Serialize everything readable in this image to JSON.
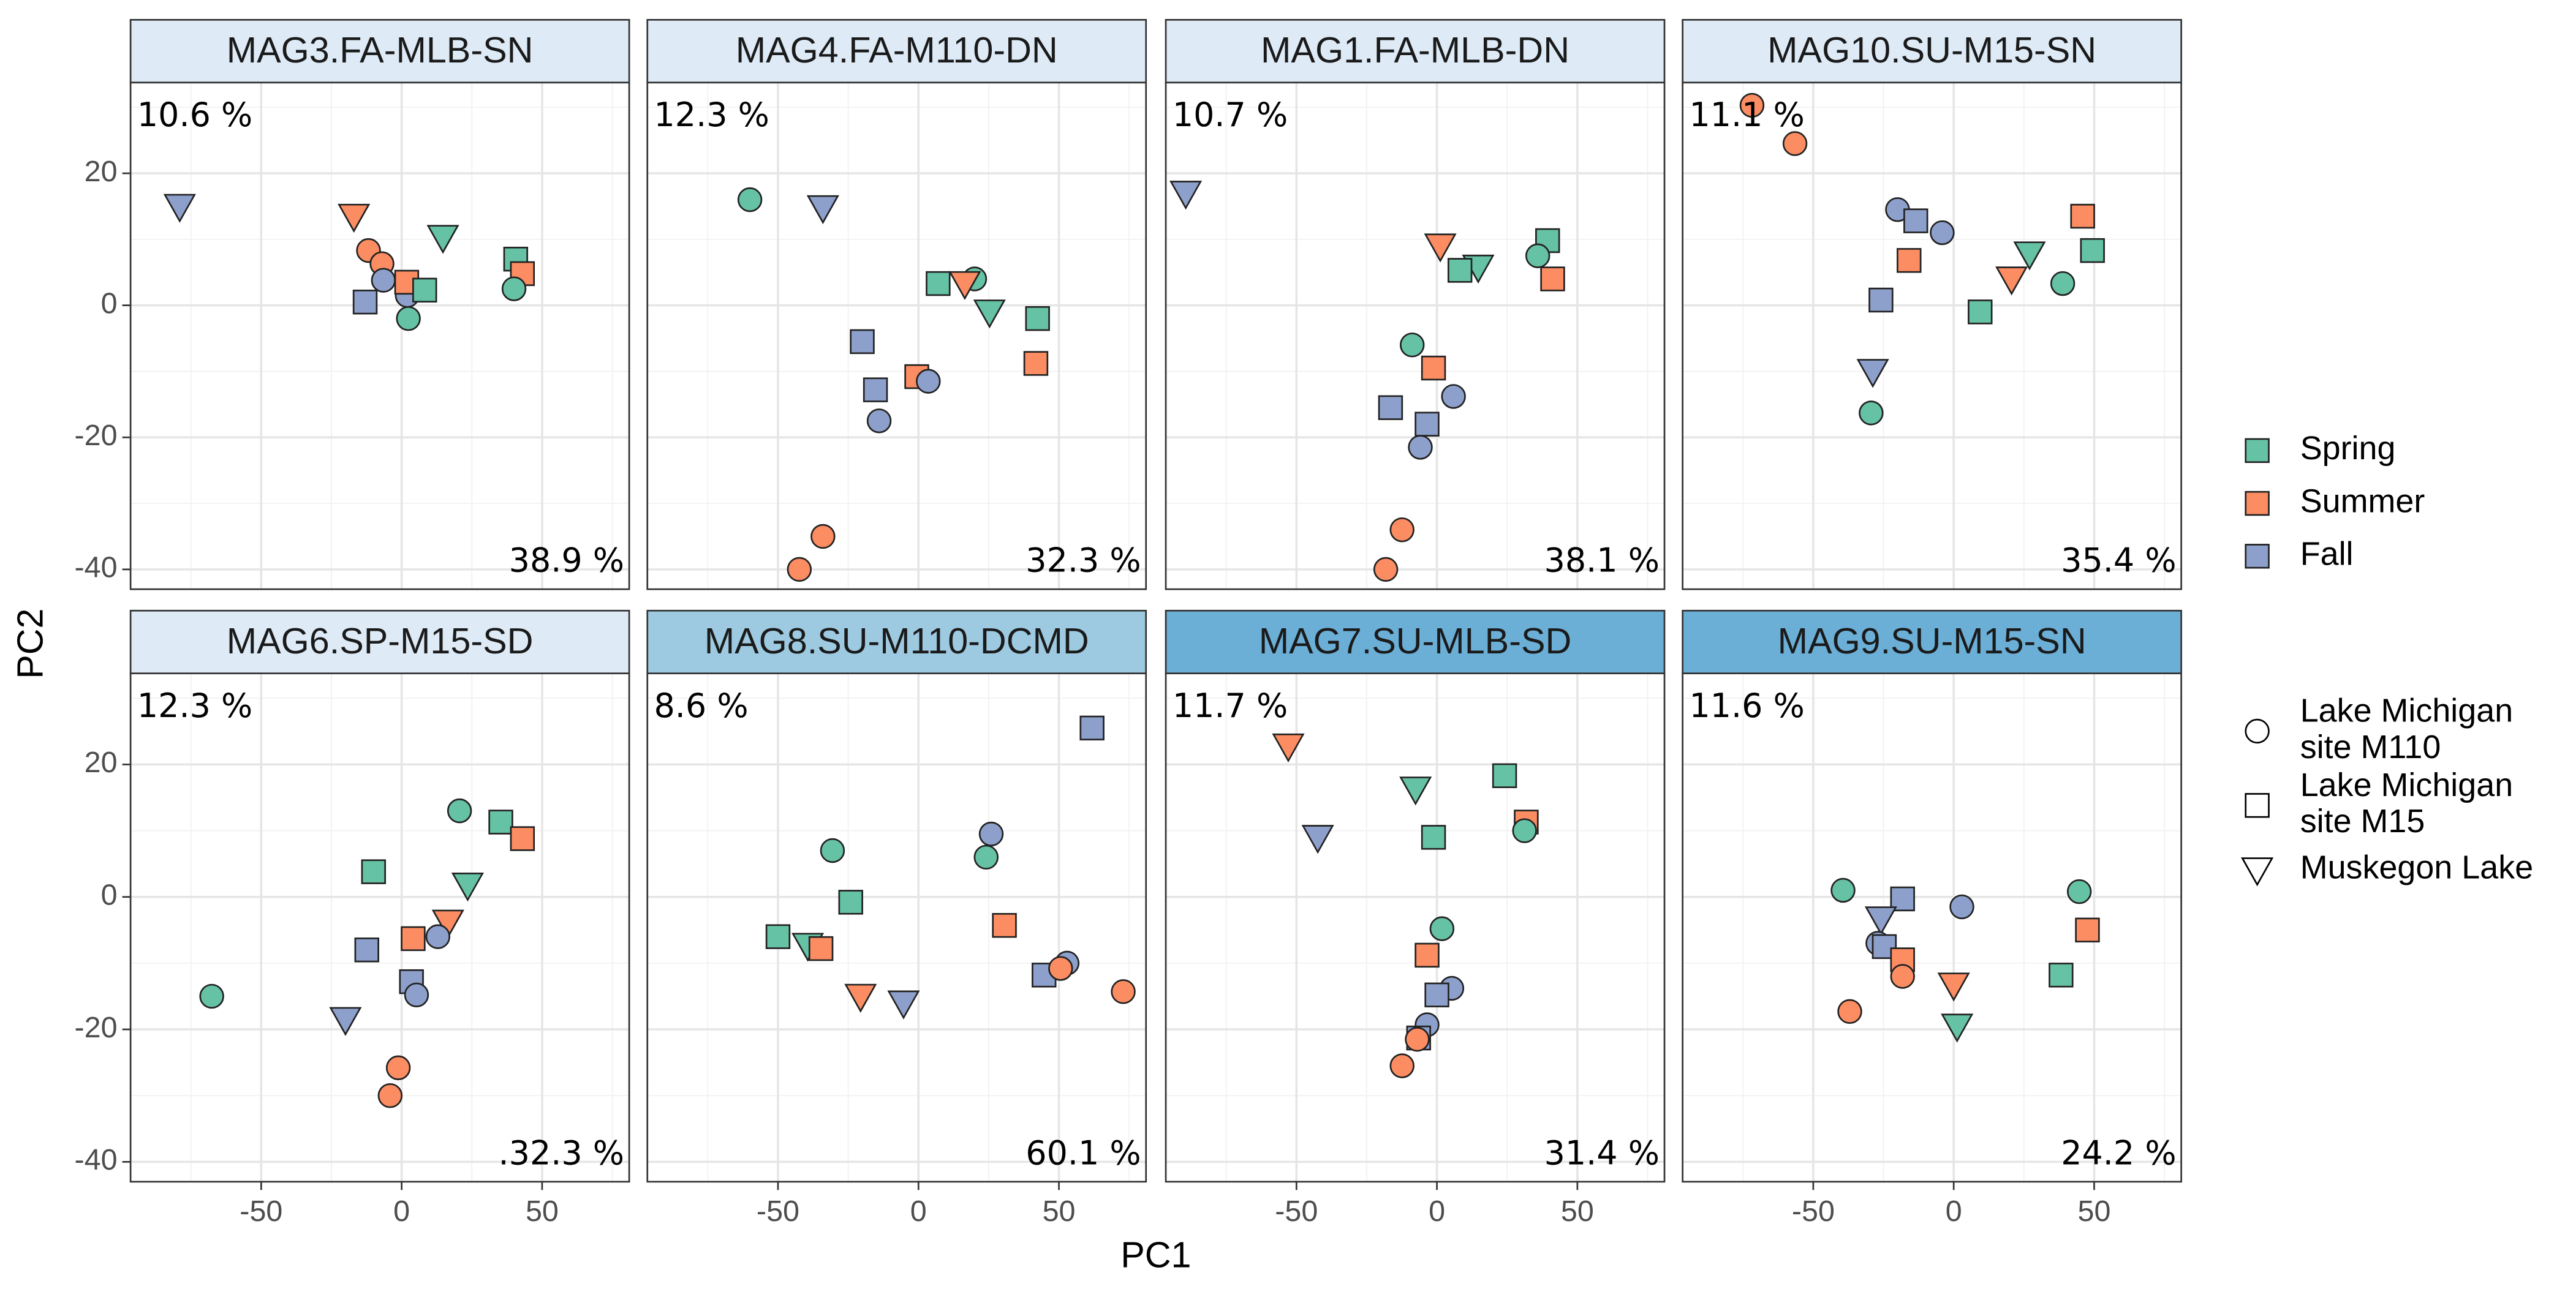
{
  "chart_data": [
    {
      "type": "scatter",
      "title": "MAG3.FA-MLB-SN",
      "strip_color": "#deebf7",
      "annotations": [
        "10.6 %",
        "38.9 %"
      ],
      "points": [
        {
          "x": -79,
          "y": 15,
          "season": "Fall",
          "shape": "triangle"
        },
        {
          "x": -17,
          "y": 13.5,
          "season": "Summer",
          "shape": "triangle"
        },
        {
          "x": 14.7,
          "y": 10.3,
          "season": "Spring",
          "shape": "triangle"
        },
        {
          "x": -11.8,
          "y": 8.3,
          "season": "Summer",
          "shape": "circle"
        },
        {
          "x": -7,
          "y": 6.3,
          "season": "Summer",
          "shape": "circle"
        },
        {
          "x": -6.5,
          "y": 3.8,
          "season": "Fall",
          "shape": "circle"
        },
        {
          "x": 2,
          "y": 1.5,
          "season": "Fall",
          "shape": "circle"
        },
        {
          "x": 1.8,
          "y": 3.5,
          "season": "Summer",
          "shape": "square"
        },
        {
          "x": 8.2,
          "y": 2.3,
          "season": "Spring",
          "shape": "square"
        },
        {
          "x": -13,
          "y": 0.5,
          "season": "Fall",
          "shape": "square"
        },
        {
          "x": 2.4,
          "y": -2,
          "season": "Spring",
          "shape": "circle"
        },
        {
          "x": 40.6,
          "y": 7,
          "season": "Spring",
          "shape": "square"
        },
        {
          "x": 43,
          "y": 4.8,
          "season": "Summer",
          "shape": "square"
        },
        {
          "x": 40,
          "y": 2.5,
          "season": "Spring",
          "shape": "circle"
        }
      ]
    },
    {
      "type": "scatter",
      "title": "MAG4.FA-M110-DN",
      "strip_color": "#deebf7",
      "annotations": [
        "12.3 %",
        "32.3 %"
      ],
      "points": [
        {
          "x": -60,
          "y": 16,
          "season": "Spring",
          "shape": "circle"
        },
        {
          "x": -34,
          "y": 14.8,
          "season": "Fall",
          "shape": "triangle"
        },
        {
          "x": 20,
          "y": 4,
          "season": "Spring",
          "shape": "circle"
        },
        {
          "x": 16.5,
          "y": 3.3,
          "season": "Summer",
          "shape": "triangle"
        },
        {
          "x": 7,
          "y": 3.3,
          "season": "Spring",
          "shape": "square"
        },
        {
          "x": 25.3,
          "y": -1,
          "season": "Spring",
          "shape": "triangle"
        },
        {
          "x": 42.4,
          "y": -2,
          "season": "Spring",
          "shape": "square"
        },
        {
          "x": 41.8,
          "y": -8.8,
          "season": "Summer",
          "shape": "square"
        },
        {
          "x": -0.6,
          "y": -10.8,
          "season": "Summer",
          "shape": "square"
        },
        {
          "x": 3.5,
          "y": -11.5,
          "season": "Fall",
          "shape": "circle"
        },
        {
          "x": -20,
          "y": -5.5,
          "season": "Fall",
          "shape": "square"
        },
        {
          "x": -15.3,
          "y": -12.8,
          "season": "Fall",
          "shape": "square"
        },
        {
          "x": -14,
          "y": -17.5,
          "season": "Fall",
          "shape": "circle"
        },
        {
          "x": -34,
          "y": -35,
          "season": "Summer",
          "shape": "circle"
        },
        {
          "x": -42.4,
          "y": -40,
          "season": "Summer",
          "shape": "circle"
        }
      ]
    },
    {
      "type": "scatter",
      "title": "MAG1.FA-MLB-DN",
      "strip_color": "#deebf7",
      "annotations": [
        "10.7 %",
        "38.1 %"
      ],
      "points": [
        {
          "x": -89.4,
          "y": 17,
          "season": "Fall",
          "shape": "triangle"
        },
        {
          "x": 1.2,
          "y": 9,
          "season": "Summer",
          "shape": "triangle"
        },
        {
          "x": 39.4,
          "y": 9.8,
          "season": "Spring",
          "shape": "square"
        },
        {
          "x": 35.9,
          "y": 7.5,
          "season": "Spring",
          "shape": "circle"
        },
        {
          "x": 14.7,
          "y": 5.8,
          "season": "Spring",
          "shape": "triangle"
        },
        {
          "x": 8.2,
          "y": 5.3,
          "season": "Spring",
          "shape": "square"
        },
        {
          "x": 41.2,
          "y": 4,
          "season": "Summer",
          "shape": "square"
        },
        {
          "x": -8.8,
          "y": -6,
          "season": "Spring",
          "shape": "circle"
        },
        {
          "x": -1.2,
          "y": -9.5,
          "season": "Summer",
          "shape": "square"
        },
        {
          "x": 5.9,
          "y": -13.8,
          "season": "Fall",
          "shape": "circle"
        },
        {
          "x": -16.5,
          "y": -15.5,
          "season": "Fall",
          "shape": "square"
        },
        {
          "x": -3.5,
          "y": -18,
          "season": "Fall",
          "shape": "square"
        },
        {
          "x": -5.9,
          "y": -21.5,
          "season": "Fall",
          "shape": "circle"
        },
        {
          "x": -12.4,
          "y": -34,
          "season": "Summer",
          "shape": "circle"
        },
        {
          "x": -18.2,
          "y": -40,
          "season": "Summer",
          "shape": "circle"
        }
      ]
    },
    {
      "type": "scatter",
      "title": "MAG10.SU-M15-SN",
      "strip_color": "#deebf7",
      "annotations": [
        "11.1 %",
        "35.4 %"
      ],
      "points": [
        {
          "x": -71.8,
          "y": 30.3,
          "season": "Summer",
          "shape": "circle"
        },
        {
          "x": -56.5,
          "y": 24.5,
          "season": "Summer",
          "shape": "circle"
        },
        {
          "x": 45.9,
          "y": 13.5,
          "season": "Summer",
          "shape": "square"
        },
        {
          "x": -20,
          "y": 14.5,
          "season": "Fall",
          "shape": "circle"
        },
        {
          "x": -13.5,
          "y": 12.8,
          "season": "Fall",
          "shape": "square"
        },
        {
          "x": -4.1,
          "y": 11,
          "season": "Fall",
          "shape": "circle"
        },
        {
          "x": 49.4,
          "y": 8.3,
          "season": "Spring",
          "shape": "square"
        },
        {
          "x": -15.9,
          "y": 6.8,
          "season": "Summer",
          "shape": "square"
        },
        {
          "x": 27,
          "y": 7.8,
          "season": "Spring",
          "shape": "triangle"
        },
        {
          "x": 20.6,
          "y": 4,
          "season": "Summer",
          "shape": "triangle"
        },
        {
          "x": 38.8,
          "y": 3.3,
          "season": "Spring",
          "shape": "circle"
        },
        {
          "x": -25.9,
          "y": 0.8,
          "season": "Fall",
          "shape": "square"
        },
        {
          "x": 9.4,
          "y": -1,
          "season": "Spring",
          "shape": "square"
        },
        {
          "x": -28.8,
          "y": -10,
          "season": "Fall",
          "shape": "triangle"
        },
        {
          "x": -29.4,
          "y": -16.3,
          "season": "Spring",
          "shape": "circle"
        }
      ]
    },
    {
      "type": "scatter",
      "title": "MAG6.SP-M15-SD",
      "strip_color": "#deebf7",
      "annotations": [
        "12.3 %",
        ".32.3 %"
      ],
      "points": [
        {
          "x": 20.6,
          "y": 13,
          "season": "Spring",
          "shape": "circle"
        },
        {
          "x": 35.3,
          "y": 11.3,
          "season": "Spring",
          "shape": "square"
        },
        {
          "x": 43,
          "y": 8.8,
          "season": "Summer",
          "shape": "square"
        },
        {
          "x": -10,
          "y": 3.8,
          "season": "Spring",
          "shape": "square"
        },
        {
          "x": 23.5,
          "y": 1.8,
          "season": "Spring",
          "shape": "triangle"
        },
        {
          "x": 16.5,
          "y": -3.8,
          "season": "Summer",
          "shape": "triangle"
        },
        {
          "x": 12.9,
          "y": -6,
          "season": "Fall",
          "shape": "circle"
        },
        {
          "x": 4.1,
          "y": -6.3,
          "season": "Summer",
          "shape": "square"
        },
        {
          "x": -12.4,
          "y": -8,
          "season": "Fall",
          "shape": "square"
        },
        {
          "x": 3.5,
          "y": -12.8,
          "season": "Fall",
          "shape": "square"
        },
        {
          "x": 5.3,
          "y": -14.8,
          "season": "Fall",
          "shape": "circle"
        },
        {
          "x": -67.6,
          "y": -15,
          "season": "Spring",
          "shape": "circle"
        },
        {
          "x": -20,
          "y": -18.5,
          "season": "Fall",
          "shape": "triangle"
        },
        {
          "x": -1.2,
          "y": -25.8,
          "season": "Summer",
          "shape": "circle"
        },
        {
          "x": -4.1,
          "y": -30,
          "season": "Summer",
          "shape": "circle"
        }
      ]
    },
    {
      "type": "scatter",
      "title": "MAG8.SU-M110-DCMD",
      "strip_color": "#9ecae1",
      "annotations": [
        "8.6 %",
        "60.1 %"
      ],
      "points": [
        {
          "x": 61.8,
          "y": 25.5,
          "season": "Fall",
          "shape": "square"
        },
        {
          "x": 25.9,
          "y": 9.5,
          "season": "Fall",
          "shape": "circle"
        },
        {
          "x": -30.6,
          "y": 7,
          "season": "Spring",
          "shape": "circle"
        },
        {
          "x": 24.1,
          "y": 6,
          "season": "Spring",
          "shape": "circle"
        },
        {
          "x": -24.1,
          "y": -0.8,
          "season": "Spring",
          "shape": "square"
        },
        {
          "x": -50,
          "y": -6,
          "season": "Spring",
          "shape": "square"
        },
        {
          "x": -39.4,
          "y": -7.3,
          "season": "Spring",
          "shape": "triangle"
        },
        {
          "x": -34.7,
          "y": -7.8,
          "season": "Summer",
          "shape": "square"
        },
        {
          "x": 30.6,
          "y": -4.3,
          "season": "Summer",
          "shape": "square"
        },
        {
          "x": -20.6,
          "y": -15,
          "season": "Summer",
          "shape": "triangle"
        },
        {
          "x": -5.3,
          "y": -16,
          "season": "Fall",
          "shape": "triangle"
        },
        {
          "x": 44.7,
          "y": -11.8,
          "season": "Fall",
          "shape": "square"
        },
        {
          "x": 52.9,
          "y": -10,
          "season": "Fall",
          "shape": "circle"
        },
        {
          "x": 50.6,
          "y": -10.8,
          "season": "Summer",
          "shape": "circle"
        },
        {
          "x": 72.9,
          "y": -14.3,
          "season": "Summer",
          "shape": "circle"
        }
      ]
    },
    {
      "type": "scatter",
      "title": "MAG7.SU-MLB-SD",
      "strip_color": "#6baed6",
      "annotations": [
        "11.7 %",
        "31.4 %"
      ],
      "points": [
        {
          "x": -52.9,
          "y": 22.8,
          "season": "Summer",
          "shape": "triangle"
        },
        {
          "x": -7.6,
          "y": 16.3,
          "season": "Spring",
          "shape": "triangle"
        },
        {
          "x": 24.1,
          "y": 18.3,
          "season": "Spring",
          "shape": "square"
        },
        {
          "x": 31.8,
          "y": 11.3,
          "season": "Summer",
          "shape": "square"
        },
        {
          "x": 31.2,
          "y": 10,
          "season": "Spring",
          "shape": "circle"
        },
        {
          "x": -42.4,
          "y": 9,
          "season": "Fall",
          "shape": "triangle"
        },
        {
          "x": -1.2,
          "y": 9,
          "season": "Spring",
          "shape": "square"
        },
        {
          "x": 1.8,
          "y": -4.8,
          "season": "Spring",
          "shape": "circle"
        },
        {
          "x": -3.5,
          "y": -8.8,
          "season": "Summer",
          "shape": "square"
        },
        {
          "x": 5.3,
          "y": -13.8,
          "season": "Fall",
          "shape": "circle"
        },
        {
          "x": 0,
          "y": -14.8,
          "season": "Fall",
          "shape": "square"
        },
        {
          "x": -3.5,
          "y": -19.3,
          "season": "Fall",
          "shape": "circle"
        },
        {
          "x": -6.5,
          "y": -21.3,
          "season": "Fall",
          "shape": "square"
        },
        {
          "x": -7,
          "y": -21.5,
          "season": "Summer",
          "shape": "circle"
        },
        {
          "x": -12.4,
          "y": -25.5,
          "season": "Summer",
          "shape": "circle"
        }
      ]
    },
    {
      "type": "scatter",
      "title": "MAG9.SU-M15-SN",
      "strip_color": "#6baed6",
      "annotations": [
        "11.6 %",
        "24.2 %"
      ],
      "points": [
        {
          "x": -39.4,
          "y": 1,
          "season": "Spring",
          "shape": "circle"
        },
        {
          "x": 44.7,
          "y": 0.8,
          "season": "Spring",
          "shape": "circle"
        },
        {
          "x": -18.2,
          "y": -0.3,
          "season": "Fall",
          "shape": "square"
        },
        {
          "x": 2.9,
          "y": -1.5,
          "season": "Fall",
          "shape": "circle"
        },
        {
          "x": -25.9,
          "y": -3.3,
          "season": "Fall",
          "shape": "triangle"
        },
        {
          "x": 47.6,
          "y": -5,
          "season": "Summer",
          "shape": "square"
        },
        {
          "x": -27,
          "y": -7,
          "season": "Fall",
          "shape": "circle"
        },
        {
          "x": -24.7,
          "y": -7.5,
          "season": "Fall",
          "shape": "square"
        },
        {
          "x": -18.2,
          "y": -9.5,
          "season": "Summer",
          "shape": "square"
        },
        {
          "x": -18.2,
          "y": -12,
          "season": "Summer",
          "shape": "circle"
        },
        {
          "x": 0,
          "y": -13.3,
          "season": "Summer",
          "shape": "triangle"
        },
        {
          "x": 38.2,
          "y": -11.8,
          "season": "Spring",
          "shape": "square"
        },
        {
          "x": -37,
          "y": -17.3,
          "season": "Summer",
          "shape": "circle"
        },
        {
          "x": 1.2,
          "y": -19.5,
          "season": "Spring",
          "shape": "triangle"
        }
      ]
    }
  ],
  "axes": {
    "x_label": "PC1",
    "y_label": "PC2",
    "xlim": [
      -96.5,
      81
    ],
    "ylim": [
      -43,
      33.75
    ],
    "xticks": [
      -50,
      0,
      50
    ],
    "yticks": [
      -40,
      -20,
      0,
      20
    ],
    "grid": true,
    "minor_grid": true
  },
  "legend": {
    "seasons": [
      {
        "name": "Spring",
        "color": "#66c2a5"
      },
      {
        "name": "Summer",
        "color": "#fc8d62"
      },
      {
        "name": "Fall",
        "color": "#8da0cb"
      }
    ],
    "sites": [
      {
        "label": [
          "Lake Michigan",
          "site M110"
        ],
        "shape": "circle"
      },
      {
        "label": [
          "Lake Michigan",
          "site M15"
        ],
        "shape": "square"
      },
      {
        "label": [
          "Muskegon Lake"
        ],
        "shape": "triangle"
      }
    ]
  }
}
